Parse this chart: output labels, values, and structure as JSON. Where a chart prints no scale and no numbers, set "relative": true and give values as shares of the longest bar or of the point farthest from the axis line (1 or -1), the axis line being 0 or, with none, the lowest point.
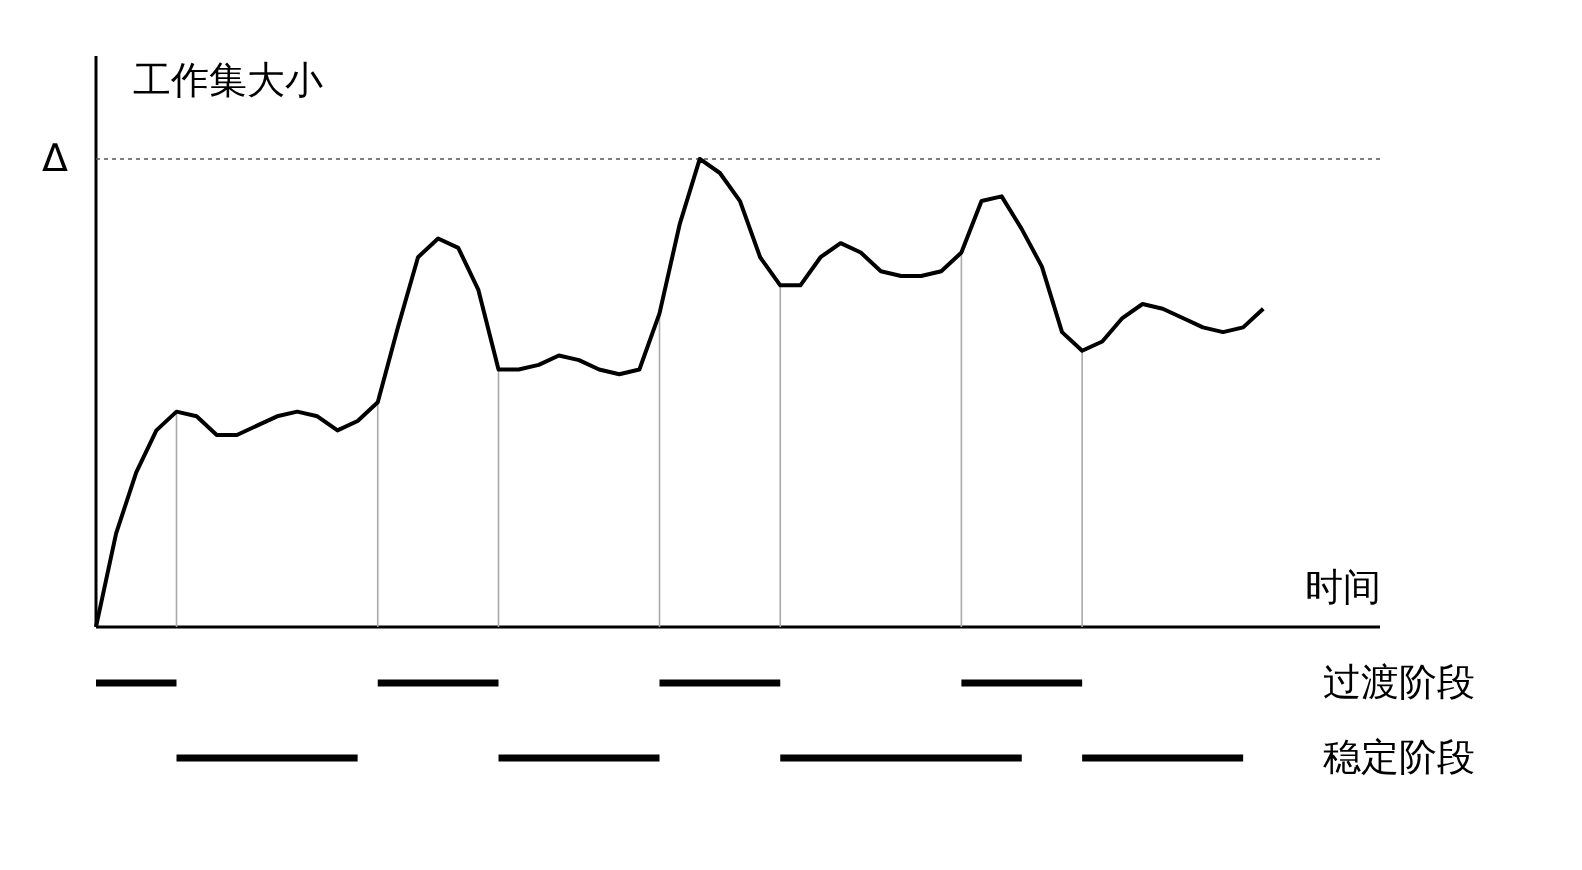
{
  "chart_data": {
    "type": "line",
    "relative": true,
    "xlabel": "时间",
    "ylabel": "工作集大小",
    "categories": [
      null,
      null,
      null,
      null,
      null,
      null,
      null,
      null,
      null,
      null,
      null,
      null,
      null,
      null,
      null,
      null,
      null,
      null,
      null,
      null,
      null,
      null,
      null,
      null,
      null,
      null,
      null,
      null,
      null,
      null,
      null,
      null,
      null,
      null,
      null,
      null,
      null,
      null,
      null,
      null,
      null,
      null,
      null,
      null,
      null,
      null,
      null,
      null,
      null,
      null,
      null,
      null,
      null,
      null,
      null,
      null,
      null,
      null,
      null
    ],
    "series": [
      {
        "color": "#000000",
        "values": [
          0,
          0.2,
          0.33,
          0.42,
          0.46,
          0.45,
          0.41,
          0.41,
          0.43,
          0.45,
          0.46,
          0.45,
          0.42,
          0.44,
          0.48,
          0.64,
          0.79,
          0.83,
          0.81,
          0.72,
          0.55,
          0.55,
          0.56,
          0.58,
          0.57,
          0.55,
          0.54,
          0.55,
          0.67,
          0.86,
          1,
          0.97,
          0.91,
          0.79,
          0.73,
          0.73,
          0.79,
          0.82,
          0.8,
          0.76,
          0.75,
          0.75,
          0.76,
          0.8,
          0.91,
          0.92,
          0.85,
          0.77,
          0.63,
          0.59,
          0.61,
          0.66,
          0.69,
          0.68,
          0.66,
          0.64,
          0.63,
          0.64,
          0.68
        ]
      },
      {
        "name": "过渡阶段",
        "color": "#000000",
        "values": [
          -0.12,
          -0.12,
          -0.12,
          -0.12,
          -0.12,
          null,
          null,
          null,
          null,
          null,
          null,
          null,
          null,
          null,
          -0.12,
          -0.12,
          -0.12,
          -0.12,
          -0.12,
          -0.12,
          -0.12,
          null,
          null,
          null,
          null,
          null,
          null,
          null,
          -0.12,
          -0.12,
          -0.12,
          -0.12,
          -0.12,
          -0.12,
          -0.12,
          null,
          null,
          null,
          null,
          null,
          null,
          null,
          null,
          -0.12,
          -0.12,
          -0.12,
          -0.12,
          -0.12,
          -0.12,
          -0.12,
          null,
          null,
          null,
          null,
          null,
          null,
          null,
          null,
          null
        ]
      },
      {
        "name": "稳定阶段",
        "color": "#000000",
        "values": [
          null,
          null,
          null,
          null,
          -0.28,
          -0.28,
          -0.28,
          -0.28,
          -0.28,
          -0.28,
          -0.28,
          -0.28,
          -0.28,
          -0.28,
          null,
          null,
          null,
          null,
          null,
          null,
          -0.28,
          -0.28,
          -0.28,
          -0.28,
          -0.28,
          -0.28,
          -0.28,
          -0.28,
          -0.28,
          null,
          null,
          null,
          null,
          null,
          -0.28,
          -0.28,
          -0.28,
          -0.28,
          -0.28,
          -0.28,
          -0.28,
          -0.28,
          -0.28,
          -0.28,
          -0.28,
          -0.28,
          -0.28,
          null,
          null,
          -0.28,
          -0.28,
          -0.28,
          -0.28,
          -0.28,
          -0.28,
          -0.28,
          -0.28,
          -0.28,
          null
        ]
      }
    ],
    "ref_lines": [
      {
        "axis": "y",
        "value": 1,
        "label": "Δ",
        "line_style": "dotted",
        "color": "#555555"
      }
    ]
  }
}
